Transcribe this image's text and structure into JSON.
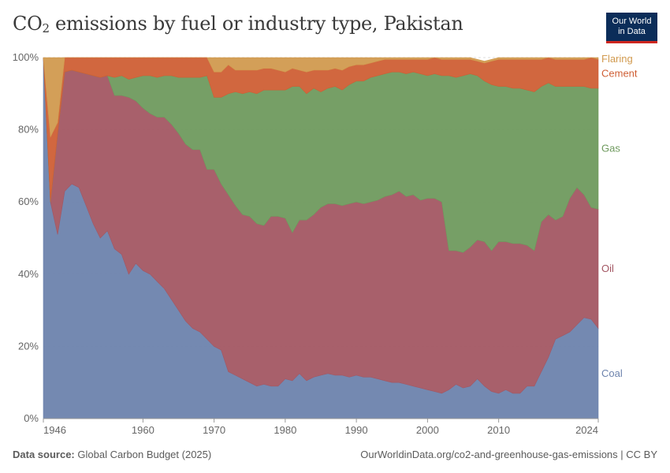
{
  "header": {
    "title_main": "CO",
    "title_sub": "2",
    "title_rest": " emissions by fuel or industry type, Pakistan",
    "logo_line1": "Our World",
    "logo_line2": "in Data"
  },
  "footer": {
    "source_label": "Data source:",
    "source_value": "Global Carbon Budget (2025)",
    "url": "OurWorldinData.org/co2-and-greenhouse-gas-emissions | CC BY"
  },
  "chart_data": {
    "type": "area",
    "stacked": true,
    "title": "CO₂ emissions by fuel or industry type, Pakistan",
    "xlabel": "",
    "ylabel": "",
    "xlim": [
      1946,
      2024
    ],
    "ylim": [
      0,
      100
    ],
    "x_ticks": [
      "1946",
      "1960",
      "1970",
      "1980",
      "1990",
      "2000",
      "2010",
      "2024"
    ],
    "x_tick_values": [
      1946,
      1960,
      1970,
      1980,
      1990,
      2000,
      2010,
      2024
    ],
    "y_ticks": [
      "0%",
      "20%",
      "40%",
      "60%",
      "80%",
      "100%"
    ],
    "y_tick_values": [
      0,
      20,
      40,
      60,
      80,
      100
    ],
    "grid": true,
    "legend_placement": "right",
    "x": [
      1946,
      1947,
      1948,
      1949,
      1950,
      1951,
      1952,
      1953,
      1954,
      1955,
      1956,
      1957,
      1958,
      1959,
      1960,
      1961,
      1962,
      1963,
      1964,
      1965,
      1966,
      1967,
      1968,
      1969,
      1970,
      1971,
      1972,
      1973,
      1974,
      1975,
      1976,
      1977,
      1978,
      1979,
      1980,
      1981,
      1982,
      1983,
      1984,
      1985,
      1986,
      1987,
      1988,
      1989,
      1990,
      1991,
      1992,
      1993,
      1994,
      1995,
      1996,
      1997,
      1998,
      1999,
      2000,
      2001,
      2002,
      2003,
      2004,
      2005,
      2006,
      2007,
      2008,
      2009,
      2010,
      2011,
      2012,
      2013,
      2014,
      2015,
      2016,
      2017,
      2018,
      2019,
      2020,
      2021,
      2022,
      2023,
      2024
    ],
    "series": [
      {
        "name": "Coal",
        "color": "#6d83ad",
        "values": [
          100,
          60,
          51,
          63,
          65,
          64,
          59,
          54,
          50,
          52,
          47,
          45.5,
          40,
          43,
          41,
          40,
          38,
          36,
          33,
          30,
          27,
          25,
          24,
          22,
          20,
          19,
          13,
          12,
          11,
          10,
          9,
          9.5,
          9,
          9,
          11,
          10.5,
          12.5,
          10.5,
          11.5,
          12,
          12.5,
          12,
          12,
          11.5,
          12,
          11.5,
          11.5,
          11,
          10.5,
          10,
          10,
          9.5,
          9,
          8.5,
          8,
          7.5,
          7,
          8,
          9.5,
          8.5,
          9,
          11,
          9,
          7.5,
          7,
          8,
          7,
          7,
          9,
          9,
          13,
          17,
          22,
          23,
          24,
          26,
          28,
          27.5,
          25
        ]
      },
      {
        "name": "Oil",
        "color": "#a35763",
        "values": [
          0,
          0,
          28,
          33,
          31.5,
          32,
          36.5,
          41,
          44.5,
          43,
          42.5,
          44,
          49,
          45,
          45,
          44.5,
          45.5,
          47.5,
          48.5,
          49,
          49,
          49.5,
          50.5,
          47,
          49,
          46,
          49,
          47,
          45.5,
          46,
          45,
          44,
          47,
          47,
          44.5,
          41,
          42.5,
          44.5,
          45,
          46.5,
          47,
          47.5,
          47,
          48,
          48,
          48,
          48.5,
          49.5,
          51,
          52,
          53,
          52,
          53,
          52,
          53,
          53.5,
          53,
          38.5,
          37,
          37.5,
          38.5,
          38.5,
          40,
          39,
          42,
          41,
          41.5,
          41.5,
          39,
          37.5,
          41.5,
          39.5,
          33,
          33,
          37,
          38,
          34,
          31,
          33
        ]
      },
      {
        "name": "Gas",
        "color": "#6f9a5e",
        "values": [
          0,
          0,
          0,
          0,
          0,
          0,
          0,
          0,
          0,
          0,
          5,
          5.5,
          5,
          6.5,
          9,
          10.5,
          11,
          11.5,
          13.5,
          15.5,
          18.5,
          20,
          20,
          26,
          20,
          24,
          28,
          31.5,
          33.5,
          34.5,
          36,
          37.5,
          35,
          35,
          35.5,
          40.5,
          37,
          35,
          35,
          32,
          32,
          32.5,
          32,
          33,
          33.5,
          34,
          34.5,
          34.5,
          34,
          34,
          33,
          34,
          34,
          35,
          34,
          34.5,
          35,
          48.5,
          48,
          49,
          48,
          45.5,
          44.5,
          46,
          43,
          43,
          43,
          43,
          43,
          44,
          37.5,
          36.5,
          37,
          36,
          31,
          28,
          30,
          33,
          33.5
        ]
      },
      {
        "name": "Cement",
        "color": "#cf5f35",
        "values": [
          0,
          18,
          3,
          4,
          3.5,
          4,
          4.5,
          5,
          5.5,
          5,
          5.5,
          5,
          6,
          5.5,
          5,
          5,
          5.5,
          5,
          5,
          5.5,
          5.5,
          5.5,
          5.5,
          5,
          7,
          7,
          8,
          6,
          6.5,
          6,
          6.5,
          6,
          6,
          5.5,
          5,
          5,
          4.5,
          6,
          5,
          6,
          5,
          5,
          5.5,
          5,
          4.5,
          4.5,
          4,
          4,
          4,
          3.5,
          3.5,
          4,
          3.5,
          4,
          4.5,
          4.5,
          4.5,
          4.5,
          5,
          4.5,
          4,
          4,
          5,
          6.5,
          7.5,
          7.5,
          8,
          8,
          8.5,
          9,
          7.5,
          7.5,
          7.5,
          7.5,
          7.5,
          7.5,
          7.5,
          8.5,
          8
        ]
      },
      {
        "name": "Flaring",
        "color": "#d19a4f",
        "values": [
          0,
          22,
          18,
          0,
          0,
          0,
          0,
          0,
          0,
          0,
          0,
          0,
          0,
          0,
          0,
          0,
          0,
          0,
          0,
          0,
          0,
          0,
          0,
          0,
          4,
          4,
          2,
          3.5,
          3.5,
          3.5,
          3.5,
          3,
          3,
          3.5,
          4,
          3,
          3.5,
          4,
          3.5,
          3.5,
          3.5,
          3,
          3.5,
          2.5,
          2,
          2,
          1.5,
          1,
          0.5,
          0.5,
          0.5,
          0.5,
          0.5,
          0.5,
          0.5,
          0.5,
          0.5,
          0.5,
          0.5,
          0.5,
          0.5,
          0.5,
          0.5,
          0.5,
          0.5,
          0.5,
          0.5,
          0.5,
          0.5,
          0.5,
          0.5,
          0.5,
          0.5,
          0.5,
          0.5,
          0.5,
          0.5,
          0.5,
          0.5
        ]
      }
    ]
  }
}
